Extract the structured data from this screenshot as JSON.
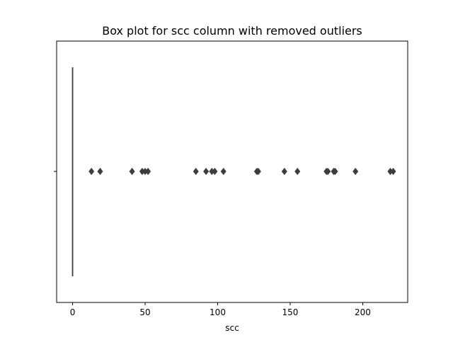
{
  "chart_data": {
    "type": "box",
    "title": "Box plot for scc column with removed outliers",
    "xlabel": "scc",
    "ylabel": "",
    "xlim": [
      -11,
      231
    ],
    "xticks": [
      0,
      50,
      100,
      150,
      200
    ],
    "grid": false,
    "box": {
      "min": 0,
      "q1": 0,
      "median": 0,
      "q3": 0,
      "max": 0
    },
    "outliers": [
      13,
      19,
      41,
      48,
      50,
      52,
      85,
      92,
      96,
      98,
      104,
      127,
      128,
      146,
      155,
      175,
      176,
      180,
      181,
      195,
      219,
      221
    ],
    "colors": {
      "whisker": "#3d3d3d",
      "outlier": "#3d3d3d",
      "axes": "#000000"
    }
  }
}
